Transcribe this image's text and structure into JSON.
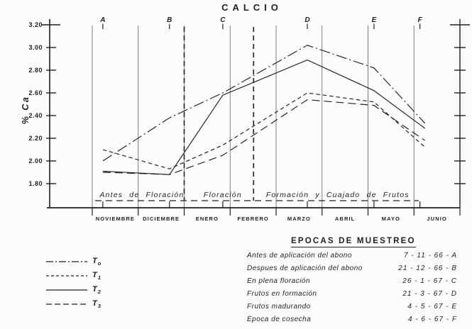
{
  "colors": {
    "ink": "#1f1f1d",
    "paper": "#fcfcfa"
  },
  "chart_data": {
    "type": "line",
    "title": "CALCIO",
    "ylabel": "% Ca",
    "ylim": [
      1.6,
      3.2
    ],
    "grid": "vertical-month-lines",
    "legend_position": "bottom-left",
    "yticks": [
      "3.20",
      "3.00",
      "2.80",
      "2.60",
      "2.40",
      "2.20",
      "2.00",
      "1.80"
    ],
    "months": [
      "NOVIEMBRE",
      "DICIEMBRE",
      "ENERO",
      "FEBRERO",
      "MARZO",
      "ABRIL",
      "MAYO",
      "JUNIO"
    ],
    "sample_markers": [
      {
        "letter": "A",
        "month_index": 0.23
      },
      {
        "letter": "B",
        "month_index": 1.68
      },
      {
        "letter": "C",
        "month_index": 2.84
      },
      {
        "letter": "D",
        "month_index": 4.68
      },
      {
        "letter": "E",
        "month_index": 6.13
      },
      {
        "letter": "F",
        "month_index": 7.13
      }
    ],
    "phases": {
      "labels": [
        {
          "text": "Antes de Floración",
          "center_month_index": 1.08
        },
        {
          "text": "Floración",
          "center_month_index": 2.84
        },
        {
          "text": "Formación  y  Cuajado  de  Frutos",
          "center_month_index": 5.34
        }
      ],
      "divider_month_indices": [
        2.0,
        3.51
      ]
    },
    "series": [
      {
        "name": "T0",
        "label_main": "T",
        "label_sub": "o",
        "style": "dashdot",
        "values": [
          2.0,
          2.38,
          2.6,
          3.02,
          2.82,
          2.38
        ]
      },
      {
        "name": "T1",
        "label_main": "T",
        "label_sub": "1",
        "style": "dash",
        "values": [
          2.1,
          1.93,
          2.14,
          2.6,
          2.52,
          2.16
        ]
      },
      {
        "name": "T2",
        "label_main": "T",
        "label_sub": "2",
        "style": "solid",
        "values": [
          1.91,
          1.88,
          2.58,
          2.89,
          2.62,
          2.32
        ]
      },
      {
        "name": "T3",
        "label_main": "T",
        "label_sub": "3",
        "style": "longdash",
        "values": [
          1.9,
          1.88,
          2.05,
          2.54,
          2.49,
          2.21
        ]
      }
    ]
  },
  "epocas": {
    "title": "EPOCAS DE MUESTREO",
    "rows": [
      {
        "name": "Antes de aplicación del abono",
        "date": "7 - 11 - 66 - A"
      },
      {
        "name": "Despues de aplicación del abono",
        "date": "21 - 12 - 66 - B"
      },
      {
        "name": "En plena floración",
        "date": "26 - 1 - 67 - C"
      },
      {
        "name": "Frutos en formación",
        "date": "21 - 3 - 67 - D"
      },
      {
        "name": "Frutos madurando",
        "date": "4 - 5 - 67 - E"
      },
      {
        "name": "Epoca de cosecha",
        "date": "4 - 6 - 67 - F"
      }
    ]
  }
}
